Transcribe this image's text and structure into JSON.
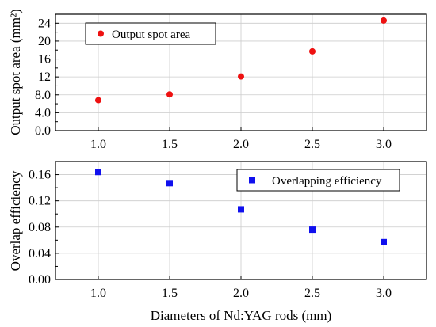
{
  "chart_data": [
    {
      "type": "scatter",
      "x": [
        1.0,
        1.5,
        2.0,
        2.5,
        3.0
      ],
      "y": [
        6.8,
        8.1,
        12.1,
        17.7,
        24.6
      ],
      "series": [
        {
          "name": "Output spot area",
          "marker": "circle",
          "color": "#ee1111",
          "values": [
            6.8,
            8.1,
            12.1,
            17.7,
            24.6
          ]
        }
      ],
      "ylabel": "Output spot area (mm²)",
      "xlabel": "",
      "xlim": [
        0.7,
        3.3
      ],
      "ylim": [
        0,
        26
      ],
      "xticks": [
        "1.0",
        "1.5",
        "2.0",
        "2.5",
        "3.0"
      ],
      "yticks": [
        "0.0",
        "4.0",
        "8.0",
        "12",
        "16",
        "20",
        "24"
      ],
      "ytick_values": [
        0,
        4,
        8,
        12,
        16,
        20,
        24
      ],
      "legend": {
        "position": "top-left",
        "label": "Output spot area"
      },
      "grid": true
    },
    {
      "type": "scatter",
      "x": [
        1.0,
        1.5,
        2.0,
        2.5,
        3.0
      ],
      "y": [
        0.164,
        0.147,
        0.107,
        0.076,
        0.057
      ],
      "series": [
        {
          "name": "Overlapping efficiency",
          "marker": "square",
          "color": "#1010ee",
          "values": [
            0.164,
            0.147,
            0.107,
            0.076,
            0.057
          ]
        }
      ],
      "ylabel": "Overlap efficiency",
      "xlabel": "Diameters of Nd:YAG rods (mm)",
      "xlim": [
        0.7,
        3.3
      ],
      "ylim": [
        0,
        0.18
      ],
      "xticks": [
        "1.0",
        "1.5",
        "2.0",
        "2.5",
        "3.0"
      ],
      "yticks": [
        "0.00",
        "0.04",
        "0.08",
        "0.12",
        "0.16"
      ],
      "ytick_values": [
        0,
        0.04,
        0.08,
        0.12,
        0.16
      ],
      "legend": {
        "position": "top-right",
        "label": "Overlapping efficiency"
      },
      "grid": true
    }
  ]
}
